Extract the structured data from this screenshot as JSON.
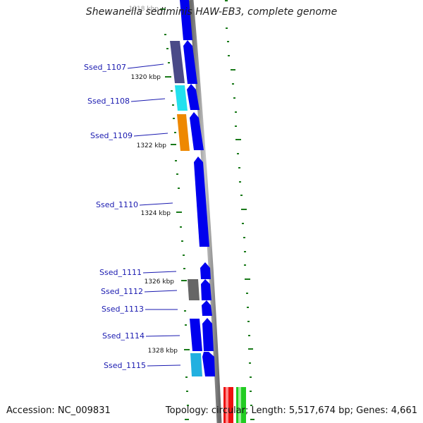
{
  "title": "Shewanella sediminis HAW-EB3, complete genome",
  "accession": "Accession: NC_009831",
  "topology": "Topology: circular; Length: 5,517,674 bp; Genes: 4,661",
  "ruler": [
    "1318 kbp",
    "1320 kbp",
    "1322 kbp",
    "1324 kbp",
    "1326 kbp",
    "1328 kbp"
  ],
  "genes": [
    "Ssed_1107",
    "Ssed_1108",
    "Ssed_1109",
    "Ssed_1110",
    "Ssed_1111",
    "Ssed_1112",
    "Ssed_1113",
    "Ssed_1114",
    "Ssed_1115"
  ],
  "colors": {
    "backbone": "#909090",
    "cds": "#0000ee",
    "gc_skew": "#1a7a1a",
    "label": "#1a1ab0",
    "cog_slate": "#4a4a88",
    "cog_cyan": "#22e0ee",
    "cog_orange": "#ee8800",
    "cog_gray": "#666666",
    "cog_sky": "#22b0e0",
    "red_feature": "#ee1010",
    "green_feature": "#22cc22"
  }
}
